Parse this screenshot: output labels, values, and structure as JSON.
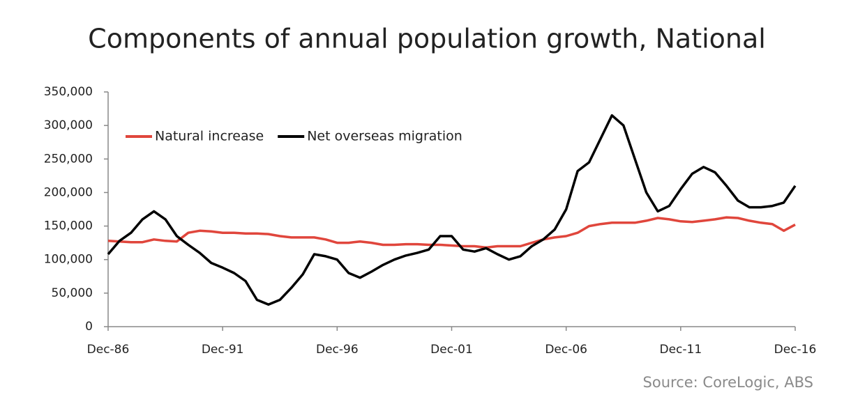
{
  "chart_data": {
    "type": "line",
    "title": "Components of annual population growth, National",
    "source": "Source: CoreLogic, ABS",
    "categories": [
      "Dec-86",
      null,
      null,
      null,
      null,
      null,
      null,
      null,
      null,
      null,
      "Dec-91",
      null,
      null,
      null,
      null,
      null,
      null,
      null,
      null,
      null,
      "Dec-96",
      null,
      null,
      null,
      null,
      null,
      null,
      null,
      null,
      null,
      "Dec-01",
      null,
      null,
      null,
      null,
      null,
      null,
      null,
      null,
      null,
      "Dec-06",
      null,
      null,
      null,
      null,
      null,
      null,
      null,
      null,
      null,
      "Dec-11",
      null,
      null,
      null,
      null,
      null,
      null,
      null,
      null,
      null,
      "Dec-16"
    ],
    "series": [
      {
        "name": "Natural increase",
        "color": "#e0463c",
        "values": [
          128000,
          127000,
          126000,
          126000,
          130000,
          128000,
          127000,
          140000,
          143000,
          142000,
          140000,
          140000,
          139000,
          139000,
          138000,
          135000,
          133000,
          133000,
          133000,
          130000,
          125000,
          125000,
          127000,
          125000,
          122000,
          122000,
          123000,
          123000,
          122000,
          122000,
          121000,
          120000,
          120000,
          118000,
          120000,
          120000,
          120000,
          125000,
          130000,
          133000,
          135000,
          140000,
          150000,
          153000,
          155000,
          155000,
          155000,
          158000,
          162000,
          160000,
          157000,
          156000,
          158000,
          160000,
          163000,
          162000,
          158000,
          155000,
          153000,
          143000,
          152000
        ]
      },
      {
        "name": "Net overseas migration",
        "color": "#000000",
        "values": [
          108000,
          128000,
          140000,
          160000,
          172000,
          160000,
          135000,
          122000,
          110000,
          95000,
          88000,
          80000,
          68000,
          40000,
          33000,
          40000,
          58000,
          78000,
          108000,
          105000,
          100000,
          80000,
          73000,
          82000,
          92000,
          100000,
          106000,
          110000,
          115000,
          135000,
          135000,
          115000,
          112000,
          117000,
          108000,
          100000,
          105000,
          120000,
          130000,
          145000,
          175000,
          232000,
          245000,
          280000,
          315000,
          300000,
          250000,
          200000,
          172000,
          180000,
          205000,
          228000,
          238000,
          230000,
          210000,
          188000,
          178000,
          178000,
          180000,
          185000,
          210000
        ]
      }
    ],
    "ylim": [
      0,
      350000
    ],
    "yticks": [
      0,
      {
        "value": 50000,
        "label": "50,000"
      },
      {
        "value": 100000,
        "label": "100,000"
      },
      {
        "value": 150000,
        "label": "150,000"
      },
      {
        "value": 200000,
        "label": "200,000"
      },
      {
        "value": 250000,
        "label": "250,000"
      },
      {
        "value": 300000,
        "label": "300,000"
      },
      {
        "value": 350000,
        "label": "350,000"
      }
    ],
    "grid": false,
    "legend": "upper left"
  }
}
